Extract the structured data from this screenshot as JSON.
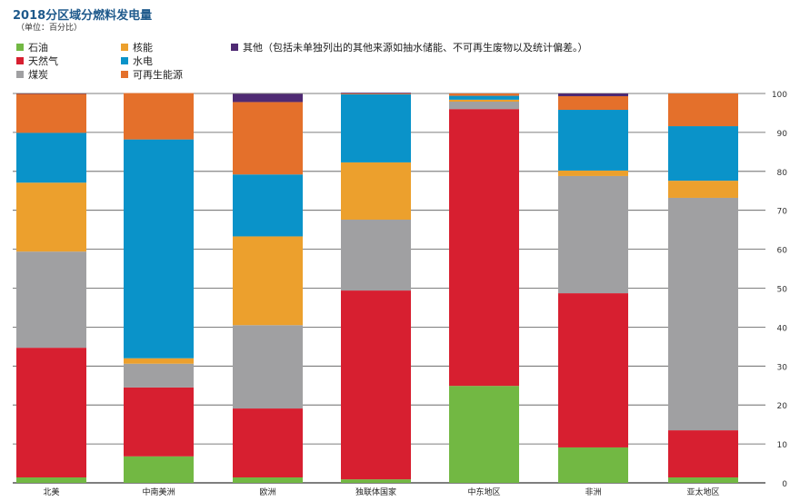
{
  "chart_data": {
    "type": "bar",
    "stacked": true,
    "title": "2018分区域分燃料发电量",
    "subtitle": "（单位：百分比）",
    "categories": [
      "北美",
      "中南美洲",
      "欧洲",
      "独联体国家",
      "中东地区",
      "非洲",
      "亚太地区"
    ],
    "ylim": [
      0,
      100
    ],
    "yticks": [
      0,
      10,
      20,
      30,
      40,
      50,
      60,
      70,
      80,
      90,
      100
    ],
    "y_axis_side": "right",
    "grid": true,
    "legend_position": "top-left",
    "series": [
      {
        "name": "石油",
        "color": "#72b843",
        "values": [
          1.4,
          6.8,
          1.4,
          0.9,
          24.9,
          9.1,
          1.4
        ]
      },
      {
        "name": "天然气",
        "color": "#d71f30",
        "values": [
          33.3,
          17.7,
          17.7,
          48.5,
          71.1,
          39.6,
          12.1
        ]
      },
      {
        "name": "煤炭",
        "color": "#a0a0a2",
        "values": [
          24.7,
          6.1,
          21.4,
          18.2,
          1.9,
          30.1,
          59.7
        ]
      },
      {
        "name": "核能",
        "color": "#eca02d",
        "values": [
          17.7,
          1.4,
          22.8,
          14.7,
          0.5,
          1.4,
          4.4
        ]
      },
      {
        "name": "水电",
        "color": "#0a93c9",
        "values": [
          12.8,
          56.2,
          15.9,
          17.5,
          1.0,
          15.6,
          14.0
        ]
      },
      {
        "name": "可再生能源",
        "color": "#e4702b",
        "values": [
          10.0,
          11.9,
          18.6,
          0.2,
          0.6,
          3.5,
          8.4
        ]
      },
      {
        "name": "其他（包括未单独列出的其他来源如抽水储能、不可再生废物以及统计偏差。）",
        "color": "#4f2a73",
        "values": [
          0.1,
          0,
          2.1,
          0.2,
          0,
          0.7,
          0
        ]
      }
    ]
  }
}
